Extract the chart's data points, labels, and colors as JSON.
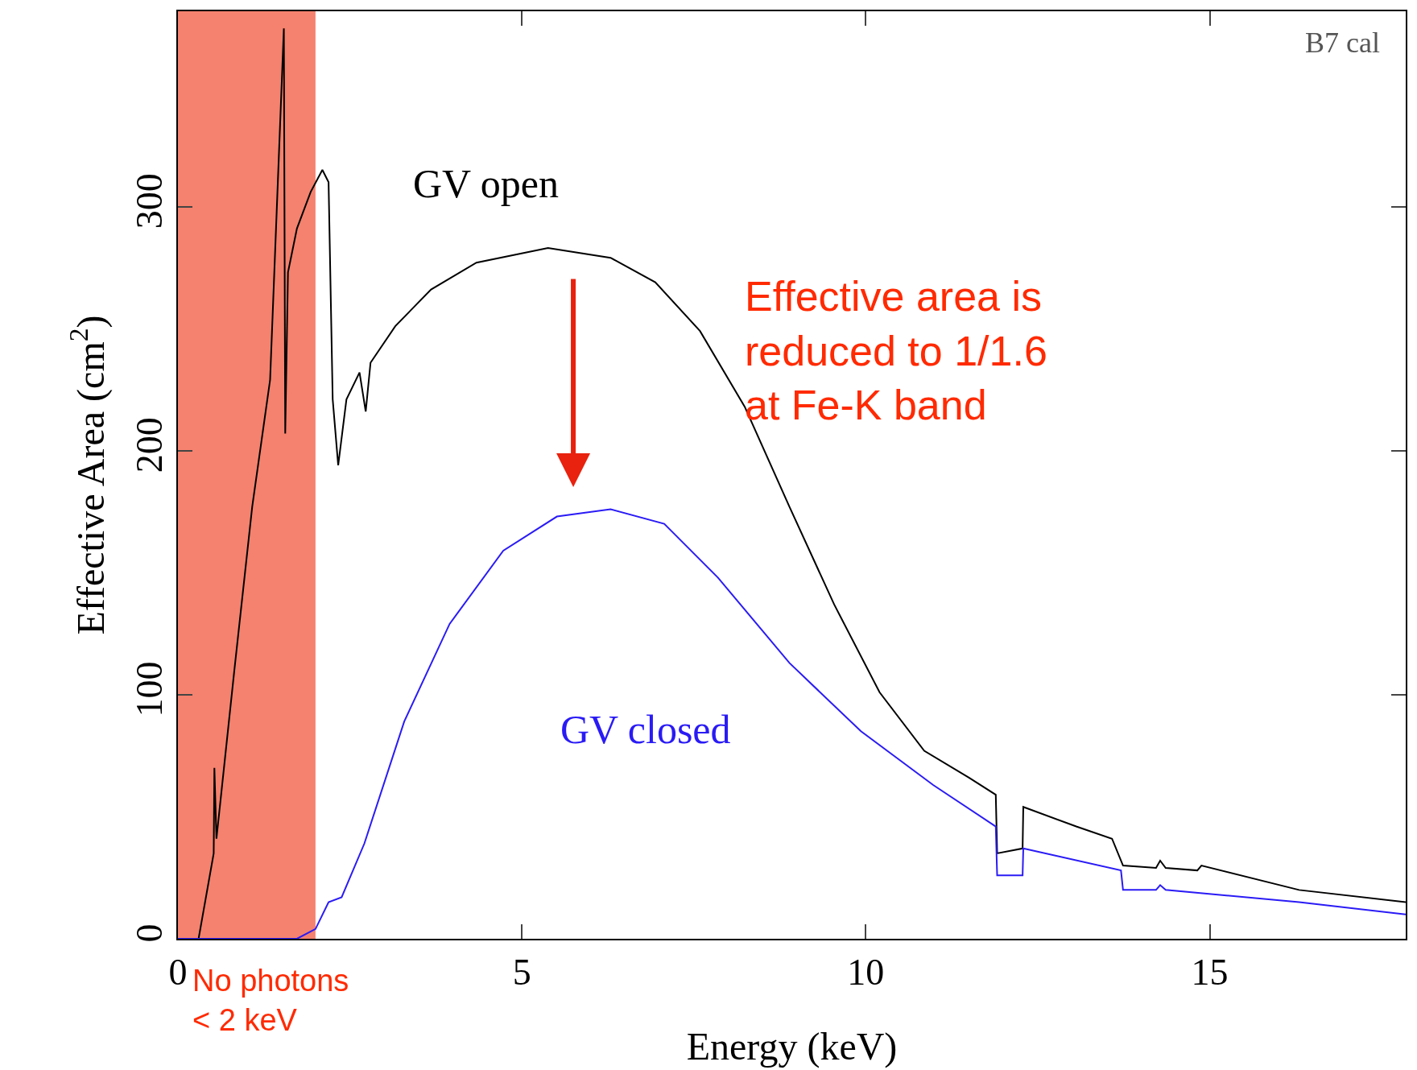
{
  "chart_data": {
    "type": "line",
    "xlabel": "Energy (keV)",
    "ylabel": "Effective Area (cm$^{2}$)",
    "xlim": [
      0,
      17.85
    ],
    "ylim": [
      0,
      380
    ],
    "xticks": [
      0,
      5,
      10,
      15
    ],
    "yticks": [
      0,
      100,
      200,
      300
    ],
    "grid": false,
    "legend": false,
    "marker": "none",
    "line_style": "solid",
    "series": [
      {
        "name": "GV open",
        "color": "#000000",
        "x": [
          0,
          0.3,
          0.52,
          0.53,
          0.56,
          0.82,
          1.08,
          1.34,
          1.54,
          1.56,
          1.6,
          1.73,
          1.93,
          2.1,
          2.19,
          2.25,
          2.33,
          2.45,
          2.64,
          2.73,
          2.8,
          3.16,
          3.68,
          4.34,
          5.38,
          6.29,
          6.94,
          7.59,
          8.24,
          8.89,
          9.54,
          10.2,
          10.85,
          11.5,
          11.89,
          11.91,
          12.28,
          12.29,
          13.06,
          13.58,
          13.74,
          14.22,
          14.28,
          14.36,
          14.82,
          14.88,
          16.3,
          17.85
        ],
        "values": [
          0,
          0,
          35,
          70,
          41,
          110,
          177,
          229,
          373,
          207,
          273,
          291,
          306,
          315,
          310,
          221,
          194,
          221,
          232,
          216,
          236,
          251,
          266,
          277,
          283,
          279,
          269,
          249,
          218,
          177,
          137,
          101,
          77,
          66,
          59,
          35,
          37,
          54,
          46,
          41,
          30,
          29,
          32,
          29,
          28,
          30,
          20,
          15
        ]
      },
      {
        "name": "GV closed",
        "color": "#2a1bf5",
        "x": [
          0,
          1.73,
          2.0,
          2.19,
          2.38,
          2.71,
          3.29,
          3.95,
          4.73,
          5.51,
          6.29,
          7.07,
          7.85,
          8.89,
          9.93,
          10.98,
          11.89,
          11.91,
          12.28,
          12.29,
          13.71,
          13.74,
          14.22,
          14.28,
          14.36,
          16.3,
          17.85
        ],
        "values": [
          0,
          0,
          4,
          15,
          17,
          39,
          89,
          129,
          159,
          173,
          176,
          170,
          148,
          113,
          85,
          63,
          46,
          26,
          26,
          37,
          28,
          20,
          20,
          22,
          20,
          15,
          10
        ]
      }
    ],
    "bands": [
      {
        "axis": "x",
        "from": 0,
        "to": 2,
        "color": "#f4826e",
        "label": "No photons\n< 2 keV"
      }
    ],
    "annotations": [
      "B7 cal",
      "Effective area is\nreduced to 1/1.6\nat Fe-K band"
    ]
  }
}
